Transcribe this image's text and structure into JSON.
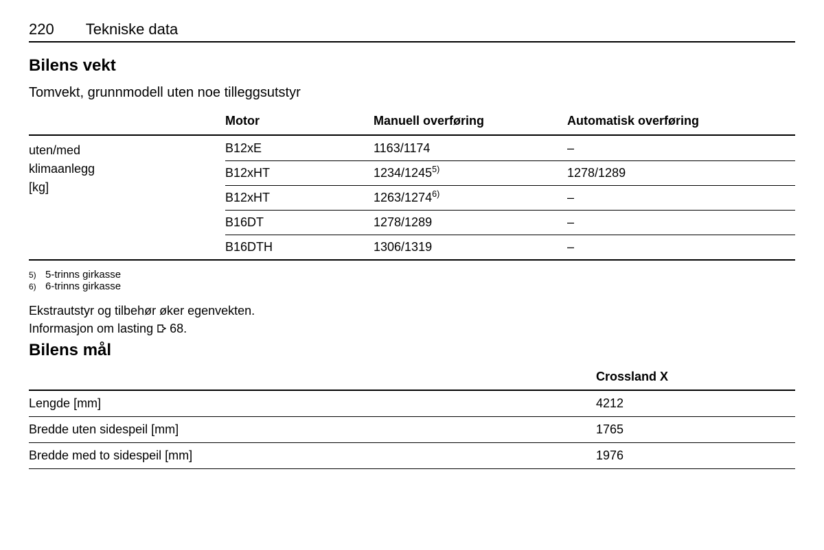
{
  "header": {
    "page_number": "220",
    "chapter_title": "Tekniske data"
  },
  "section1": {
    "title": "Bilens vekt",
    "subtitle": "Tomvekt, grunnmodell uten noe tilleggsutstyr"
  },
  "weight_table": {
    "headers": {
      "col1": "",
      "col2": "Motor",
      "col3": "Manuell overføring",
      "col4": "Automatisk overføring"
    },
    "side_label_line1": "uten/med",
    "side_label_line2": "klimaanlegg",
    "side_label_line3": "[kg]",
    "rows": [
      {
        "motor": "B12xE",
        "manual": "1163/1174",
        "manual_sup": "",
        "auto": "–"
      },
      {
        "motor": "B12xHT",
        "manual": "1234/1245",
        "manual_sup": "5)",
        "auto": "1278/1289"
      },
      {
        "motor": "B12xHT",
        "manual": "1263/1274",
        "manual_sup": "6)",
        "auto": "–"
      },
      {
        "motor": "B16DT",
        "manual": "1278/1289",
        "manual_sup": "",
        "auto": "–"
      },
      {
        "motor": "B16DTH",
        "manual": "1306/1319",
        "manual_sup": "",
        "auto": "–"
      }
    ]
  },
  "footnotes": [
    {
      "num": "5)",
      "text": "5-trinns girkasse"
    },
    {
      "num": "6)",
      "text": "6-trinns girkasse"
    }
  ],
  "notes": {
    "line1": "Ekstrautstyr og tilbehør øker egenvekten.",
    "line2_prefix": "Informasjon om lasting ",
    "line2_ref": "68."
  },
  "section2": {
    "title": "Bilens mål"
  },
  "dim_table": {
    "header_col2": "Crossland X",
    "rows": [
      {
        "label": "Lengde [mm]",
        "value": "4212"
      },
      {
        "label": "Bredde uten sidespeil [mm]",
        "value": "1765"
      },
      {
        "label": "Bredde med to sidespeil [mm]",
        "value": "1976"
      }
    ]
  }
}
